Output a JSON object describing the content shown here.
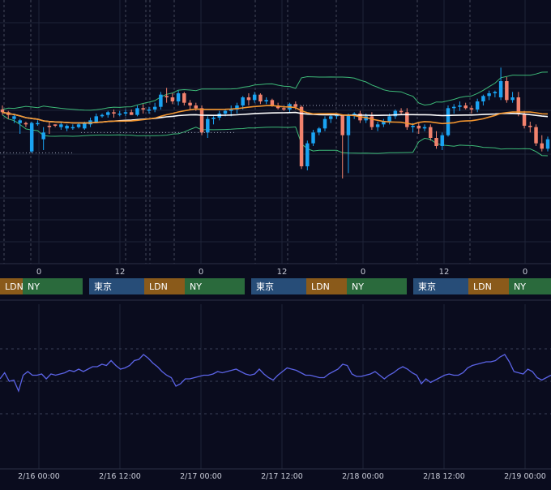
{
  "colors": {
    "background": "#0a0c1e",
    "grid": "#1f2438",
    "bull": "#1aa3f2",
    "bear": "#f2826d",
    "bollinger": "#3dba78",
    "ma_fast": "#f2952f",
    "ma_slow": "#ffffff",
    "oscillator": "#5b63e6",
    "session_tokyo": "#274d78",
    "session_london": "#8a5a1a",
    "session_ny": "#2a6a3c"
  },
  "sessions": {
    "tokyo": "東京",
    "london": "LDN",
    "ny": "NY"
  },
  "chart_data": [
    {
      "type": "candlestick",
      "title": "",
      "x_ticks": [
        "0",
        "12",
        "0",
        "12",
        "0",
        "12",
        "0"
      ],
      "overlays": [
        "bollinger-bands",
        "moving-average-fast",
        "moving-average-slow"
      ],
      "candles": [
        {
          "o": 15,
          "h": 18,
          "l": 11,
          "c": 13
        },
        {
          "o": 13,
          "h": 14,
          "l": 8,
          "c": 11
        },
        {
          "o": 8,
          "h": 12,
          "l": 5,
          "c": 10
        },
        {
          "o": 5,
          "h": 8,
          "l": -3,
          "c": 7
        },
        {
          "o": 5,
          "h": 6,
          "l": 2,
          "c": 4
        },
        {
          "o": -16,
          "h": 6,
          "l": -17,
          "c": 5
        },
        {
          "o": 5,
          "h": 7,
          "l": 3,
          "c": 5
        },
        {
          "o": -7,
          "h": 2,
          "l": -15,
          "c": -2
        },
        {
          "o": 3,
          "h": 6,
          "l": -3,
          "c": 2
        },
        {
          "o": 4,
          "h": 4,
          "l": 2,
          "c": 3
        },
        {
          "o": 2,
          "h": 6,
          "l": 0,
          "c": 4
        },
        {
          "o": 1,
          "h": 4,
          "l": -1,
          "c": 3
        },
        {
          "o": 2,
          "h": 4,
          "l": 0,
          "c": 2
        },
        {
          "o": 2,
          "h": 5,
          "l": 1,
          "c": 4
        },
        {
          "o": 1,
          "h": 6,
          "l": 0,
          "c": 5
        },
        {
          "o": 4,
          "h": 9,
          "l": 2,
          "c": 7
        },
        {
          "o": 6,
          "h": 12,
          "l": 5,
          "c": 10
        },
        {
          "o": 10,
          "h": 12,
          "l": 9,
          "c": 11
        },
        {
          "o": 11,
          "h": 14,
          "l": 9,
          "c": 13
        },
        {
          "o": 13,
          "h": 15,
          "l": 9,
          "c": 12
        },
        {
          "o": 12,
          "h": 14,
          "l": 10,
          "c": 12
        },
        {
          "o": 12,
          "h": 15,
          "l": 10,
          "c": 13
        },
        {
          "o": 13,
          "h": 15,
          "l": 11,
          "c": 11
        },
        {
          "o": 11,
          "h": 18,
          "l": 10,
          "c": 16
        },
        {
          "o": 16,
          "h": 19,
          "l": 12,
          "c": 15
        },
        {
          "o": 15,
          "h": 17,
          "l": 12,
          "c": 15
        },
        {
          "o": 15,
          "h": 20,
          "l": 13,
          "c": 17
        },
        {
          "o": 17,
          "h": 28,
          "l": 15,
          "c": 26
        },
        {
          "o": 25,
          "h": 31,
          "l": 20,
          "c": 24
        },
        {
          "o": 24,
          "h": 27,
          "l": 19,
          "c": 21
        },
        {
          "o": 21,
          "h": 29,
          "l": 18,
          "c": 27
        },
        {
          "o": 27,
          "h": 28,
          "l": 18,
          "c": 20
        },
        {
          "o": 20,
          "h": 22,
          "l": 15,
          "c": 18
        },
        {
          "o": 18,
          "h": 20,
          "l": 14,
          "c": 16
        },
        {
          "o": 16,
          "h": 18,
          "l": -4,
          "c": -2
        },
        {
          "o": -2,
          "h": 10,
          "l": -6,
          "c": 8
        },
        {
          "o": 8,
          "h": 10,
          "l": 4,
          "c": 9
        },
        {
          "o": 9,
          "h": 14,
          "l": 7,
          "c": 12
        },
        {
          "o": 12,
          "h": 15,
          "l": 10,
          "c": 14
        },
        {
          "o": 14,
          "h": 18,
          "l": 10,
          "c": 15
        },
        {
          "o": 15,
          "h": 20,
          "l": 12,
          "c": 18
        },
        {
          "o": 18,
          "h": 25,
          "l": 15,
          "c": 24
        },
        {
          "o": 24,
          "h": 27,
          "l": 18,
          "c": 22
        },
        {
          "o": 22,
          "h": 28,
          "l": 20,
          "c": 26
        },
        {
          "o": 26,
          "h": 27,
          "l": 19,
          "c": 21
        },
        {
          "o": 21,
          "h": 24,
          "l": 19,
          "c": 22
        },
        {
          "o": 22,
          "h": 23,
          "l": 17,
          "c": 18
        },
        {
          "o": 18,
          "h": 20,
          "l": 15,
          "c": 16
        },
        {
          "o": 16,
          "h": 17,
          "l": 14,
          "c": 15
        },
        {
          "o": 15,
          "h": 20,
          "l": 13,
          "c": 19
        },
        {
          "o": 19,
          "h": 21,
          "l": 15,
          "c": 17
        },
        {
          "o": 17,
          "h": 18,
          "l": -29,
          "c": -27
        },
        {
          "o": -27,
          "h": -8,
          "l": -30,
          "c": -10
        },
        {
          "o": -10,
          "h": 0,
          "l": -12,
          "c": -2
        },
        {
          "o": -2,
          "h": 2,
          "l": -4,
          "c": 1
        },
        {
          "o": 1,
          "h": 10,
          "l": -1,
          "c": 8
        },
        {
          "o": 8,
          "h": 11,
          "l": 5,
          "c": 10
        },
        {
          "o": 10,
          "h": 12,
          "l": 8,
          "c": 11
        },
        {
          "o": 11,
          "h": 11,
          "l": -36,
          "c": -4
        },
        {
          "o": -4,
          "h": 12,
          "l": -32,
          "c": 11
        },
        {
          "o": 11,
          "h": 13,
          "l": 8,
          "c": 12
        },
        {
          "o": 12,
          "h": 14,
          "l": 5,
          "c": 7
        },
        {
          "o": 7,
          "h": 12,
          "l": 5,
          "c": 10
        },
        {
          "o": 10,
          "h": 13,
          "l": 0,
          "c": 2
        },
        {
          "o": 2,
          "h": 6,
          "l": -1,
          "c": 4
        },
        {
          "o": 4,
          "h": 8,
          "l": 2,
          "c": 6
        },
        {
          "o": 6,
          "h": 12,
          "l": 4,
          "c": 10
        },
        {
          "o": 10,
          "h": 15,
          "l": 8,
          "c": 14
        },
        {
          "o": 14,
          "h": 16,
          "l": 11,
          "c": 13
        },
        {
          "o": 13,
          "h": 16,
          "l": 0,
          "c": 2
        },
        {
          "o": 2,
          "h": 5,
          "l": -2,
          "c": 3
        },
        {
          "o": 3,
          "h": 5,
          "l": -3,
          "c": 1
        },
        {
          "o": 1,
          "h": 4,
          "l": -1,
          "c": 2
        },
        {
          "o": 2,
          "h": 4,
          "l": -8,
          "c": -6
        },
        {
          "o": -6,
          "h": -1,
          "l": -14,
          "c": -12
        },
        {
          "o": -12,
          "h": -2,
          "l": -15,
          "c": -4
        },
        {
          "o": -4,
          "h": 18,
          "l": -5,
          "c": 16
        },
        {
          "o": 16,
          "h": 19,
          "l": 12,
          "c": 17
        },
        {
          "o": 17,
          "h": 21,
          "l": 14,
          "c": 18
        },
        {
          "o": 18,
          "h": 20,
          "l": 15,
          "c": 16
        },
        {
          "o": 16,
          "h": 18,
          "l": 12,
          "c": 15
        },
        {
          "o": 15,
          "h": 23,
          "l": 13,
          "c": 21
        },
        {
          "o": 21,
          "h": 26,
          "l": 18,
          "c": 25
        },
        {
          "o": 25,
          "h": 29,
          "l": 22,
          "c": 27
        },
        {
          "o": 27,
          "h": 29,
          "l": 24,
          "c": 28
        },
        {
          "o": 24,
          "h": 46,
          "l": 22,
          "c": 36
        },
        {
          "o": 36,
          "h": 39,
          "l": 20,
          "c": 22
        },
        {
          "o": 22,
          "h": 28,
          "l": 20,
          "c": 24
        },
        {
          "o": 24,
          "h": 28,
          "l": 10,
          "c": 12
        },
        {
          "o": 12,
          "h": 14,
          "l": 1,
          "c": 3
        },
        {
          "o": 3,
          "h": 6,
          "l": -2,
          "c": 2
        },
        {
          "o": 2,
          "h": 4,
          "l": -12,
          "c": -10
        },
        {
          "o": -10,
          "h": -4,
          "l": -16,
          "c": -14
        },
        {
          "o": -14,
          "h": -5,
          "l": -16,
          "c": -7
        }
      ]
    },
    {
      "type": "line",
      "title": "",
      "x_labels": [
        "2/16 00:00",
        "2/16 12:00",
        "2/17 00:00",
        "2/17 12:00",
        "2/18 00:00",
        "2/18 12:00",
        "2/19 00:00"
      ],
      "values": [
        52,
        57,
        50,
        51,
        42,
        55,
        58,
        55,
        55,
        56,
        52,
        56,
        55,
        56,
        57,
        59,
        58,
        60,
        58,
        60,
        62,
        62,
        64,
        63,
        67,
        63,
        60,
        61,
        63,
        67,
        68,
        72,
        69,
        65,
        62,
        58,
        55,
        53,
        46,
        48,
        52,
        52,
        53,
        54,
        55,
        55,
        56,
        58,
        57,
        58,
        59,
        60,
        58,
        56,
        55,
        56,
        60,
        56,
        53,
        51,
        55,
        58,
        61,
        60,
        59,
        57,
        55,
        55,
        54,
        53,
        53,
        56,
        58,
        60,
        64,
        63,
        56,
        54,
        54,
        55,
        56,
        58,
        55,
        52,
        55,
        57,
        60,
        62,
        60,
        57,
        55,
        48,
        52,
        49,
        51,
        53,
        55,
        56,
        55,
        55,
        57,
        61,
        63,
        64,
        65,
        66,
        66,
        67,
        70,
        72,
        66,
        58,
        57,
        56,
        60,
        58,
        53,
        51,
        53,
        55
      ]
    }
  ],
  "main_chart_levels": {
    "data_top": 60,
    "data_bottom": -60
  },
  "oscillator_levels": {
    "ymin": 0,
    "ymax": 100
  }
}
